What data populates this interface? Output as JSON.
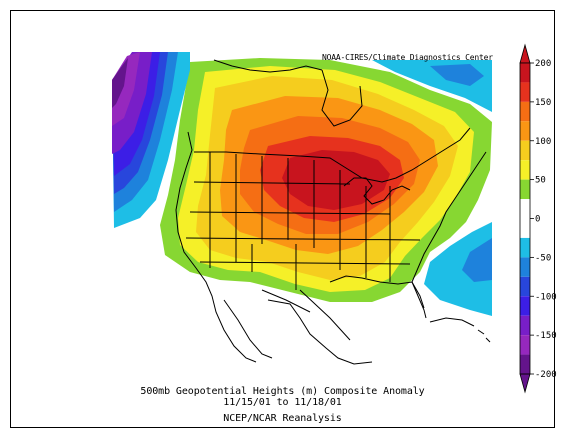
{
  "figure": {
    "credit": "NOAA-CIRES/Climate Diagnostics Center",
    "caption_line1": "500mb Geopotential Heights (m)   Composite Anomaly",
    "caption_line2": "11/15/01  to 11/18/01",
    "caption_line3": "NCEP/NCAR Reanalysis"
  },
  "colorbar": {
    "ticks": [
      {
        "value": 200,
        "label": "200"
      },
      {
        "value": 150,
        "label": "150"
      },
      {
        "value": 100,
        "label": "100"
      },
      {
        "value": 50,
        "label": "50"
      },
      {
        "value": 0,
        "label": "0"
      },
      {
        "value": -50,
        "label": "-50"
      },
      {
        "value": -100,
        "label": "-100"
      },
      {
        "value": -150,
        "label": "-150"
      },
      {
        "value": -200,
        "label": "-200"
      }
    ],
    "bands": [
      {
        "from": 175,
        "to": 200,
        "color": "#c8141e"
      },
      {
        "from": 150,
        "to": 175,
        "color": "#e6321e"
      },
      {
        "from": 125,
        "to": 150,
        "color": "#f56e14"
      },
      {
        "from": 100,
        "to": 125,
        "color": "#fa9614"
      },
      {
        "from": 75,
        "to": 100,
        "color": "#f5cd1e"
      },
      {
        "from": 50,
        "to": 75,
        "color": "#f5f028"
      },
      {
        "from": 25,
        "to": 50,
        "color": "#87d732"
      },
      {
        "from": 0,
        "to": 25,
        "color": "#ffffff"
      },
      {
        "from": -25,
        "to": 0,
        "color": "#ffffff"
      },
      {
        "from": -50,
        "to": -25,
        "color": "#1ebee6"
      },
      {
        "from": -75,
        "to": -50,
        "color": "#1e82dc"
      },
      {
        "from": -100,
        "to": -75,
        "color": "#2846dc"
      },
      {
        "from": -125,
        "to": -100,
        "color": "#3c1ee6"
      },
      {
        "from": -150,
        "to": -125,
        "color": "#781ec8"
      },
      {
        "from": -175,
        "to": -150,
        "color": "#9628be"
      },
      {
        "from": -200,
        "to": -175,
        "color": "#64148c"
      }
    ],
    "min": -200,
    "max": 200
  }
}
